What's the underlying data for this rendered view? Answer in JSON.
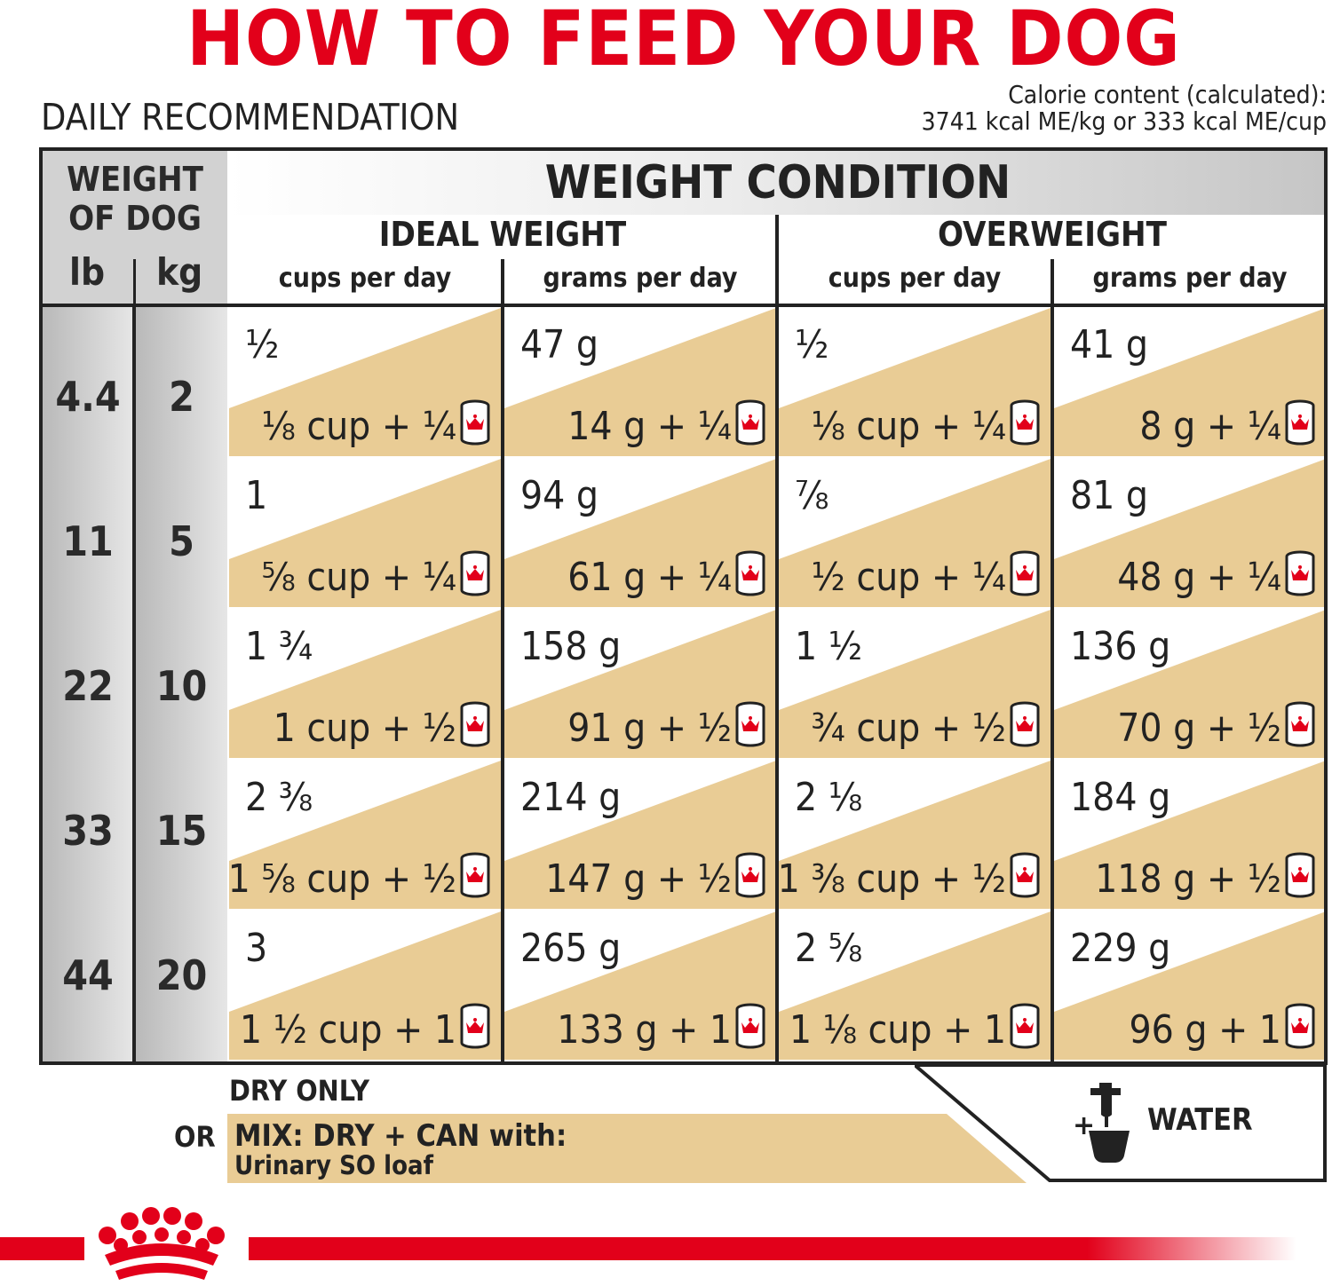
{
  "title": "HOW TO FEED YOUR DOG",
  "daily_label": "DAILY RECOMMENDATION",
  "calorie": {
    "line1": "Calorie content (calculated):",
    "line2": "3741 kcal ME/kg or 333 kcal ME/cup"
  },
  "weight_of_dog": {
    "line1": "WEIGHT",
    "line2": "OF DOG",
    "lb": "lb",
    "kg": "kg"
  },
  "weight_condition": "WEIGHT CONDITION",
  "groups": {
    "ideal": "IDEAL WEIGHT",
    "overweight": "OVERWEIGHT"
  },
  "subheaders": {
    "ideal_cups": "cups per day",
    "ideal_grams": "grams per day",
    "over_cups": "cups per day",
    "over_grams": "grams per day"
  },
  "rows": [
    {
      "lb": "4.4",
      "kg": "2",
      "cells": [
        {
          "top": "½",
          "bottom": "⅛ cup + ¼"
        },
        {
          "top": "47 g",
          "bottom": "14 g + ¼"
        },
        {
          "top": "½",
          "bottom": "⅛ cup + ¼"
        },
        {
          "top": "41 g",
          "bottom": "8 g + ¼"
        }
      ]
    },
    {
      "lb": "11",
      "kg": "5",
      "cells": [
        {
          "top": "1",
          "bottom": "⅝ cup + ¼"
        },
        {
          "top": "94 g",
          "bottom": "61 g + ¼"
        },
        {
          "top": "⅞",
          "bottom": "½ cup + ¼"
        },
        {
          "top": "81 g",
          "bottom": "48 g + ¼"
        }
      ]
    },
    {
      "lb": "22",
      "kg": "10",
      "cells": [
        {
          "top": "1 ¾",
          "bottom": "1 cup + ½"
        },
        {
          "top": "158 g",
          "bottom": "91 g + ½"
        },
        {
          "top": "1 ½",
          "bottom": "¾ cup + ½"
        },
        {
          "top": "136 g",
          "bottom": "70 g + ½"
        }
      ]
    },
    {
      "lb": "33",
      "kg": "15",
      "cells": [
        {
          "top": "2 ⅜",
          "bottom": "1 ⅝ cup + ½"
        },
        {
          "top": "214 g",
          "bottom": "147 g + ½"
        },
        {
          "top": "2 ⅛",
          "bottom": "1 ⅜ cup + ½"
        },
        {
          "top": "184 g",
          "bottom": "118 g + ½"
        }
      ]
    },
    {
      "lb": "44",
      "kg": "20",
      "cells": [
        {
          "top": "3",
          "bottom": "1 ½ cup + 1"
        },
        {
          "top": "265 g",
          "bottom": "133 g + 1"
        },
        {
          "top": "2 ⅝",
          "bottom": "1 ⅛ cup + 1"
        },
        {
          "top": "229 g",
          "bottom": "96 g + 1"
        }
      ]
    }
  ],
  "legend": {
    "dry_only": "DRY ONLY",
    "or": "OR",
    "mix_line1": "MIX: DRY + CAN with:",
    "mix_line2": "Urinary SO loaf",
    "plus": "+",
    "water": "WATER"
  },
  "icons": [
    "can-icon",
    "water-tap-icon",
    "crown-logo"
  ],
  "colors": {
    "brand_red": "#e2001a",
    "wet_fill": "#e9cc95",
    "header_gray": "#c6c6c6",
    "text": "#222222"
  }
}
